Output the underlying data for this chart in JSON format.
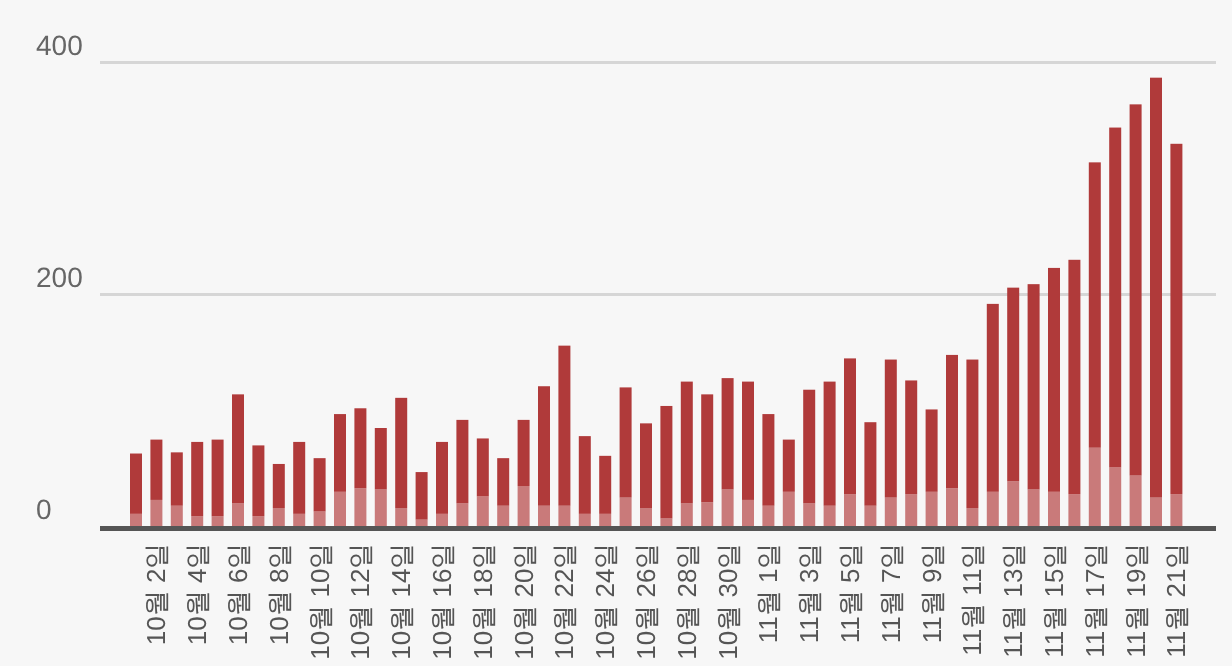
{
  "chart_data": {
    "type": "bar",
    "stacked": true,
    "categories": [
      null,
      "10월 2일",
      null,
      "10월 4일",
      null,
      "10월 6일",
      null,
      "10월 8일",
      null,
      "10월 10일",
      null,
      "10월 12일",
      null,
      "10월 14일",
      null,
      "10월 16일",
      null,
      "10월 18일",
      null,
      "10월 20일",
      null,
      "10월 22일",
      null,
      "10월 24일",
      null,
      "10월 26일",
      null,
      "10월 28일",
      null,
      "10월 30일",
      null,
      "11월 1일",
      null,
      "11월 3일",
      null,
      "11월 5일",
      null,
      "11월 7일",
      null,
      "11월 9일",
      null,
      "11월 11일",
      null,
      "11월 13일",
      null,
      "11월 15일",
      null,
      "11월 17일",
      null,
      "11월 19일",
      null,
      "11월 21일"
    ],
    "series": [
      {
        "color": "#c97a7a",
        "values": [
          11,
          23,
          18,
          9,
          9,
          20,
          9,
          16,
          11,
          13,
          30,
          33,
          32,
          16,
          6,
          11,
          20,
          26,
          18,
          35,
          18,
          18,
          11,
          11,
          25,
          16,
          7,
          20,
          21,
          32,
          23,
          18,
          30,
          20,
          18,
          28,
          18,
          25,
          28,
          30,
          33,
          16,
          30,
          39,
          32,
          30,
          28,
          68,
          51,
          44,
          25,
          28
        ]
      },
      {
        "color": "#b03a3a",
        "values": [
          52,
          52,
          46,
          64,
          66,
          94,
          61,
          38,
          62,
          46,
          67,
          69,
          53,
          95,
          41,
          62,
          72,
          50,
          41,
          57,
          103,
          138,
          67,
          50,
          95,
          73,
          97,
          105,
          93,
          96,
          102,
          79,
          45,
          98,
          107,
          117,
          72,
          119,
          98,
          71,
          115,
          128,
          162,
          167,
          177,
          193,
          202,
          246,
          293,
          320,
          362,
          302
        ]
      }
    ],
    "ylim": [
      0,
      400
    ],
    "yticks": [
      0,
      200,
      400
    ],
    "grid": "y"
  }
}
